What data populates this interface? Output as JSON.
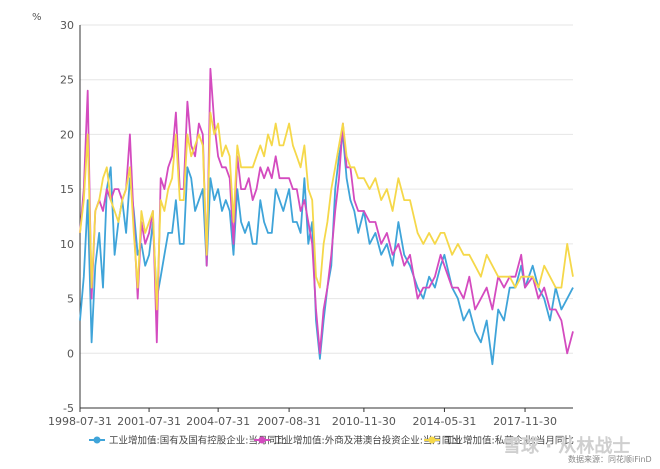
{
  "chart_data": {
    "type": "line",
    "unit_label": "%",
    "ylim": [
      -5,
      30
    ],
    "yticks": [
      -5,
      0,
      5,
      10,
      15,
      20,
      25,
      30
    ],
    "xlim": [
      "1998-07-31",
      "2019-12-31"
    ],
    "xticks": [
      "1998-07-31",
      "2001-07-31",
      "2004-07-31",
      "2007-08-31",
      "2010-11-30",
      "2014-05-31",
      "2017-11-30"
    ],
    "grid": "horizontal",
    "legend_position": "bottom",
    "colors": {
      "state_owned": "#3fa4d9",
      "foreign": "#d44bbf",
      "private": "#f5d84a"
    },
    "series": [
      {
        "name": "工业增加值:国有及国有控股企业:当月同比",
        "key": "state_owned",
        "x": [
          "1998-07-31",
          "1998-09-30",
          "1998-11-30",
          "1999-01-31",
          "1999-03-31",
          "1999-05-31",
          "1999-07-31",
          "1999-09-30",
          "1999-11-30",
          "2000-01-31",
          "2000-03-31",
          "2000-05-31",
          "2000-07-31",
          "2000-09-30",
          "2000-11-30",
          "2001-01-31",
          "2001-03-31",
          "2001-05-31",
          "2001-07-31",
          "2001-09-30",
          "2001-11-30",
          "2002-01-31",
          "2002-03-31",
          "2002-05-31",
          "2002-07-31",
          "2002-09-30",
          "2002-11-30",
          "2003-01-31",
          "2003-03-31",
          "2003-05-31",
          "2003-07-31",
          "2003-09-30",
          "2003-11-30",
          "2004-01-31",
          "2004-03-31",
          "2004-05-31",
          "2004-07-31",
          "2004-09-30",
          "2004-11-30",
          "2005-01-31",
          "2005-03-31",
          "2005-05-31",
          "2005-07-31",
          "2005-09-30",
          "2005-11-30",
          "2006-01-31",
          "2006-03-31",
          "2006-05-31",
          "2006-07-31",
          "2006-09-30",
          "2006-11-30",
          "2007-01-31",
          "2007-03-31",
          "2007-05-31",
          "2007-08-31",
          "2007-10-31",
          "2007-12-31",
          "2008-02-29",
          "2008-04-30",
          "2008-06-30",
          "2008-08-31",
          "2008-10-31",
          "2008-12-31",
          "2009-02-28",
          "2009-04-30",
          "2009-06-30",
          "2009-08-31",
          "2009-10-31",
          "2009-12-31",
          "2010-02-28",
          "2010-04-30",
          "2010-06-30",
          "2010-08-31",
          "2010-11-30",
          "2011-02-28",
          "2011-05-31",
          "2011-08-31",
          "2011-11-30",
          "2012-02-29",
          "2012-05-31",
          "2012-08-31",
          "2012-11-30",
          "2013-03-31",
          "2013-06-30",
          "2013-09-30",
          "2013-12-31",
          "2014-03-31",
          "2014-05-31",
          "2014-09-30",
          "2014-12-31",
          "2015-03-31",
          "2015-06-30",
          "2015-09-30",
          "2015-12-31",
          "2016-03-31",
          "2016-06-30",
          "2016-09-30",
          "2016-12-31",
          "2017-03-31",
          "2017-06-30",
          "2017-09-30",
          "2017-11-30",
          "2018-03-31",
          "2018-06-30",
          "2018-09-30",
          "2018-12-31",
          "2019-03-31",
          "2019-06-30",
          "2019-09-30",
          "2019-12-31"
        ],
        "values": [
          3,
          7,
          14,
          1,
          8,
          11,
          6,
          15,
          17,
          9,
          12,
          14,
          11,
          16,
          13,
          9,
          10,
          8,
          9,
          12,
          5,
          7,
          9,
          11,
          11,
          14,
          10,
          10,
          17,
          16,
          13,
          14,
          15,
          8,
          16,
          14,
          15,
          13,
          14,
          13,
          9,
          15,
          12,
          11,
          12,
          10,
          10,
          14,
          12,
          11,
          11,
          15,
          14,
          13,
          15,
          12,
          12,
          11,
          16,
          10,
          12,
          3,
          -0.5,
          3,
          6,
          8,
          15,
          18,
          20,
          16,
          14,
          13,
          11,
          13,
          10,
          11,
          9,
          10,
          8,
          12,
          9,
          8,
          6,
          5,
          7,
          6,
          8,
          9,
          6,
          5,
          3,
          4,
          2,
          1,
          3,
          -1,
          4,
          3,
          6,
          6,
          8,
          6,
          8,
          6,
          5,
          3,
          6,
          4,
          5,
          6
        ]
      },
      {
        "name": "工业增加值:外商及港澳台投资企业:当月同比",
        "key": "foreign",
        "x": [
          "1998-07-31",
          "1998-09-30",
          "1998-11-30",
          "1999-01-31",
          "1999-03-31",
          "1999-05-31",
          "1999-07-31",
          "1999-09-30",
          "1999-11-30",
          "2000-01-31",
          "2000-03-31",
          "2000-05-31",
          "2000-07-31",
          "2000-09-30",
          "2000-11-30",
          "2001-01-31",
          "2001-03-31",
          "2001-05-31",
          "2001-07-31",
          "2001-09-30",
          "2001-11-30",
          "2002-01-31",
          "2002-03-31",
          "2002-05-31",
          "2002-07-31",
          "2002-09-30",
          "2002-11-30",
          "2003-01-31",
          "2003-03-31",
          "2003-05-31",
          "2003-07-31",
          "2003-09-30",
          "2003-11-30",
          "2004-01-31",
          "2004-03-31",
          "2004-05-31",
          "2004-07-31",
          "2004-09-30",
          "2004-11-30",
          "2005-01-31",
          "2005-03-31",
          "2005-05-31",
          "2005-07-31",
          "2005-09-30",
          "2005-11-30",
          "2006-01-31",
          "2006-03-31",
          "2006-05-31",
          "2006-07-31",
          "2006-09-30",
          "2006-11-30",
          "2007-01-31",
          "2007-03-31",
          "2007-05-31",
          "2007-08-31",
          "2007-10-31",
          "2007-12-31",
          "2008-02-29",
          "2008-04-30",
          "2008-06-30",
          "2008-08-31",
          "2008-10-31",
          "2008-12-31",
          "2009-02-28",
          "2009-04-30",
          "2009-06-30",
          "2009-08-31",
          "2009-10-31",
          "2009-12-31",
          "2010-02-28",
          "2010-04-30",
          "2010-06-30",
          "2010-08-31",
          "2010-11-30",
          "2011-02-28",
          "2011-05-31",
          "2011-08-31",
          "2011-11-30",
          "2012-02-29",
          "2012-05-31",
          "2012-08-31",
          "2012-11-30",
          "2013-03-31",
          "2013-06-30",
          "2013-09-30",
          "2013-12-31",
          "2014-03-31",
          "2014-05-31",
          "2014-09-30",
          "2014-12-31",
          "2015-03-31",
          "2015-06-30",
          "2015-09-30",
          "2015-12-31",
          "2016-03-31",
          "2016-06-30",
          "2016-09-30",
          "2016-12-31",
          "2017-03-31",
          "2017-06-30",
          "2017-09-30",
          "2017-11-30",
          "2018-03-31",
          "2018-06-30",
          "2018-09-30",
          "2018-12-31",
          "2019-03-31",
          "2019-06-30",
          "2019-09-30",
          "2019-12-31"
        ],
        "values": [
          11,
          15,
          24,
          5,
          13,
          14,
          13,
          15,
          14,
          15,
          15,
          14,
          15,
          20,
          12,
          5,
          12,
          10,
          11,
          13,
          1,
          16,
          15,
          17,
          18,
          22,
          15,
          15,
          23,
          19,
          18,
          21,
          20,
          8,
          26,
          21,
          18,
          17,
          17,
          16,
          10,
          18,
          15,
          15,
          16,
          14,
          15,
          17,
          16,
          17,
          16,
          18,
          16,
          16,
          16,
          15,
          15,
          13,
          14,
          12,
          10,
          4,
          0,
          4,
          6,
          9,
          13,
          16,
          21,
          17,
          17,
          14,
          13,
          13,
          12,
          12,
          10,
          11,
          9,
          10,
          8,
          9,
          5,
          6,
          6,
          7,
          9,
          8,
          6,
          6,
          5,
          7,
          4,
          5,
          6,
          4,
          7,
          6,
          7,
          7,
          9,
          6,
          7,
          5,
          6,
          4,
          4,
          3,
          0,
          2
        ]
      },
      {
        "name": "工业增加值:私营企业:当月同比",
        "key": "private",
        "x": [
          "1998-07-31",
          "1998-09-30",
          "1998-11-30",
          "1999-01-31",
          "1999-03-31",
          "1999-05-31",
          "1999-07-31",
          "1999-09-30",
          "1999-11-30",
          "2000-01-31",
          "2000-03-31",
          "2000-05-31",
          "2000-07-31",
          "2000-09-30",
          "2000-11-30",
          "2001-01-31",
          "2001-03-31",
          "2001-05-31",
          "2001-07-31",
          "2001-09-30",
          "2001-11-30",
          "2002-01-31",
          "2002-03-31",
          "2002-05-31",
          "2002-07-31",
          "2002-09-30",
          "2002-11-30",
          "2003-01-31",
          "2003-03-31",
          "2003-05-31",
          "2003-07-31",
          "2003-09-30",
          "2003-11-30",
          "2004-01-31",
          "2004-03-31",
          "2004-05-31",
          "2004-07-31",
          "2004-09-30",
          "2004-11-30",
          "2005-01-31",
          "2005-03-31",
          "2005-05-31",
          "2005-07-31",
          "2005-09-30",
          "2005-11-30",
          "2006-01-31",
          "2006-03-31",
          "2006-05-31",
          "2006-07-31",
          "2006-09-30",
          "2006-11-30",
          "2007-01-31",
          "2007-03-31",
          "2007-05-31",
          "2007-08-31",
          "2007-10-31",
          "2007-12-31",
          "2008-02-29",
          "2008-04-30",
          "2008-06-30",
          "2008-08-31",
          "2008-10-31",
          "2008-12-31",
          "2009-02-28",
          "2009-04-30",
          "2009-06-30",
          "2009-08-31",
          "2009-10-31",
          "2009-12-31",
          "2010-02-28",
          "2010-04-30",
          "2010-06-30",
          "2010-08-31",
          "2010-11-30",
          "2011-02-28",
          "2011-05-31",
          "2011-08-31",
          "2011-11-30",
          "2012-02-29",
          "2012-05-31",
          "2012-08-31",
          "2012-11-30",
          "2013-03-31",
          "2013-06-30",
          "2013-09-30",
          "2013-12-31",
          "2014-03-31",
          "2014-05-31",
          "2014-09-30",
          "2014-12-31",
          "2015-03-31",
          "2015-06-30",
          "2015-09-30",
          "2015-12-31",
          "2016-03-31",
          "2016-06-30",
          "2016-09-30",
          "2016-12-31",
          "2017-03-31",
          "2017-06-30",
          "2017-09-30",
          "2017-11-30",
          "2018-03-31",
          "2018-06-30",
          "2018-09-30",
          "2018-12-31",
          "2019-03-31",
          "2019-06-30",
          "2019-09-30",
          "2019-12-31"
        ],
        "values": [
          11,
          14,
          20,
          6,
          13,
          14,
          16,
          17,
          14,
          13,
          12,
          14,
          15,
          17,
          11,
          6,
          13,
          11,
          12,
          13,
          4,
          14,
          13,
          15,
          16,
          20,
          14,
          14,
          20,
          18,
          19,
          20,
          19,
          9,
          22,
          20,
          21,
          18,
          19,
          18,
          12,
          19,
          17,
          17,
          17,
          17,
          18,
          19,
          18,
          20,
          19,
          21,
          19,
          19,
          21,
          19,
          18,
          17,
          19,
          15,
          14,
          7,
          6,
          10,
          12,
          15,
          17,
          19,
          21,
          18,
          17,
          17,
          16,
          16,
          15,
          16,
          14,
          15,
          13,
          16,
          14,
          14,
          11,
          10,
          11,
          10,
          11,
          11,
          9,
          10,
          9,
          9,
          8,
          7,
          9,
          8,
          7,
          7,
          7,
          6,
          7,
          7,
          7,
          6,
          8,
          7,
          6,
          6,
          10,
          7
        ]
      }
    ]
  },
  "watermark": {
    "source": "数据来源：同花顺iFinD",
    "brand": "雪球 · 从林战士"
  }
}
